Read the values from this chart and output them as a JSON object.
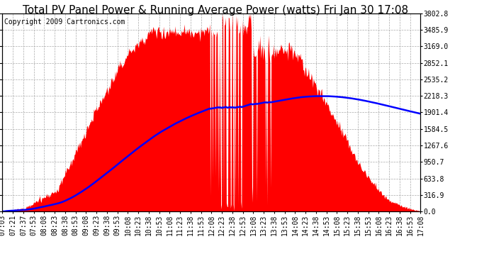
{
  "title": "Total PV Panel Power & Running Average Power (watts) Fri Jan 30 17:08",
  "copyright_text": "Copyright 2009 Cartronics.com",
  "y_tick_labels": [
    "0.0",
    "316.9",
    "633.8",
    "950.7",
    "1267.6",
    "1584.5",
    "1901.4",
    "2218.3",
    "2535.2",
    "2852.1",
    "3169.0",
    "3485.9",
    "3802.8"
  ],
  "y_max": 3802.8,
  "background_color": "#ffffff",
  "plot_bg_color": "#ffffff",
  "fill_color": "#ff0000",
  "avg_line_color": "#0000ff",
  "grid_color": "#aaaaaa",
  "title_fontsize": 11,
  "copyright_fontsize": 7,
  "tick_fontsize": 7
}
